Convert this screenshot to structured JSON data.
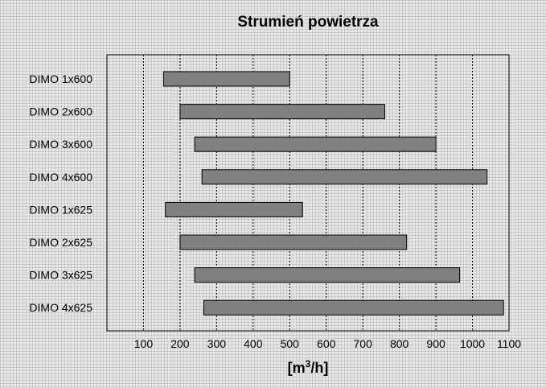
{
  "chart_data": {
    "type": "bar",
    "orientation": "horizontal",
    "title": "Strumień powietrza",
    "xlabel_parts": [
      "[m",
      "3",
      "/h]"
    ],
    "xlim": [
      0,
      1100
    ],
    "xticks": [
      100,
      200,
      300,
      400,
      500,
      600,
      700,
      800,
      900,
      1000,
      1100
    ],
    "grid": true,
    "categories": [
      "DIMO 1x600",
      "DIMO 2x600",
      "DIMO 3x600",
      "DIMO 4x600",
      "DIMO 1x625",
      "DIMO 2x625",
      "DIMO 3x625",
      "DIMO 4x625"
    ],
    "ranges": [
      [
        155,
        500
      ],
      [
        200,
        760
      ],
      [
        240,
        900
      ],
      [
        260,
        1040
      ],
      [
        160,
        535
      ],
      [
        200,
        820
      ],
      [
        240,
        965
      ],
      [
        265,
        1085
      ]
    ],
    "colors": {
      "bar": "#808080",
      "background": "#e6e6e6"
    }
  }
}
